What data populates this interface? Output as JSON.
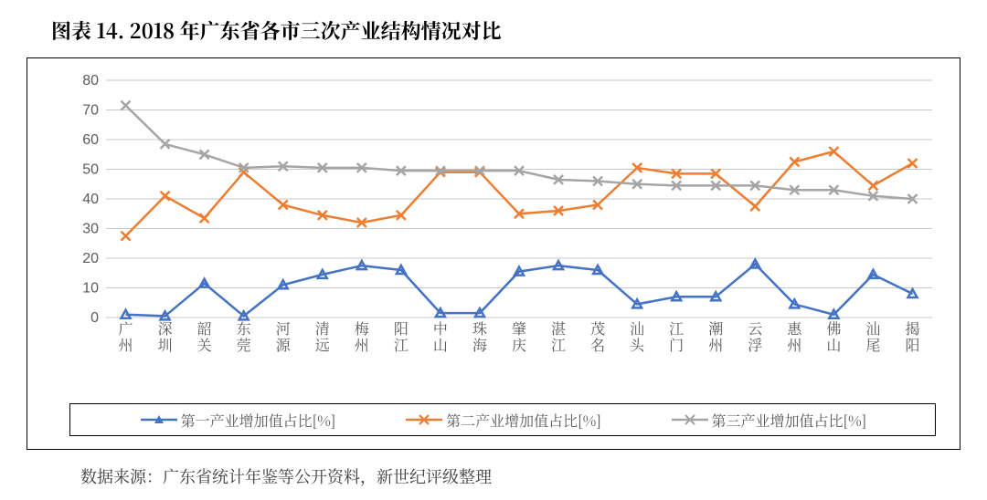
{
  "title": "图表 14. 2018 年广东省各市三次产业结构情况对比",
  "source": "数据来源：广东省统计年鉴等公开资料，新世纪评级整理",
  "chart": {
    "type": "line",
    "background_color": "#ffffff",
    "grid_color": "#c8c8c8",
    "text_color": "#5a5a5a",
    "ylim": [
      0,
      80
    ],
    "ytick_step": 10,
    "yticks": [
      0,
      10,
      20,
      30,
      40,
      50,
      60,
      70,
      80
    ],
    "line_width": 2.5,
    "marker_size": 5,
    "categories": [
      "广州",
      "深圳",
      "韶关",
      "东莞",
      "河源",
      "清远",
      "梅州",
      "阳江",
      "中山",
      "珠海",
      "肇庆",
      "湛江",
      "茂名",
      "汕头",
      "江门",
      "潮州",
      "云浮",
      "惠州",
      "佛山",
      "汕尾",
      "揭阳"
    ],
    "series": [
      {
        "id": "primary",
        "label": "第一产业增加值占比[%]",
        "color": "#4472c4",
        "marker": "triangle",
        "values": [
          1.0,
          0.5,
          11.5,
          0.5,
          11.0,
          14.5,
          17.5,
          16.0,
          1.5,
          1.5,
          15.5,
          17.5,
          16.0,
          4.5,
          7.0,
          7.0,
          18.0,
          4.5,
          1.0,
          14.5,
          8.0
        ]
      },
      {
        "id": "secondary",
        "label": "第二产业增加值占比[%]",
        "color": "#ed7d31",
        "marker": "x",
        "values": [
          27.5,
          41.0,
          33.5,
          49.0,
          38.0,
          34.5,
          32.0,
          34.5,
          49.0,
          49.0,
          35.0,
          36.0,
          38.0,
          50.5,
          48.5,
          48.5,
          37.5,
          52.5,
          56.0,
          44.5,
          52.0
        ]
      },
      {
        "id": "tertiary",
        "label": "第三产业增加值占比[%]",
        "color": "#a5a5a5",
        "marker": "x",
        "values": [
          71.5,
          58.5,
          55.0,
          50.5,
          51.0,
          50.5,
          50.5,
          49.5,
          49.5,
          49.5,
          49.5,
          46.5,
          46.0,
          45.0,
          44.5,
          44.5,
          44.5,
          43.0,
          43.0,
          41.0,
          40.0
        ]
      }
    ],
    "legend_position": "bottom"
  }
}
